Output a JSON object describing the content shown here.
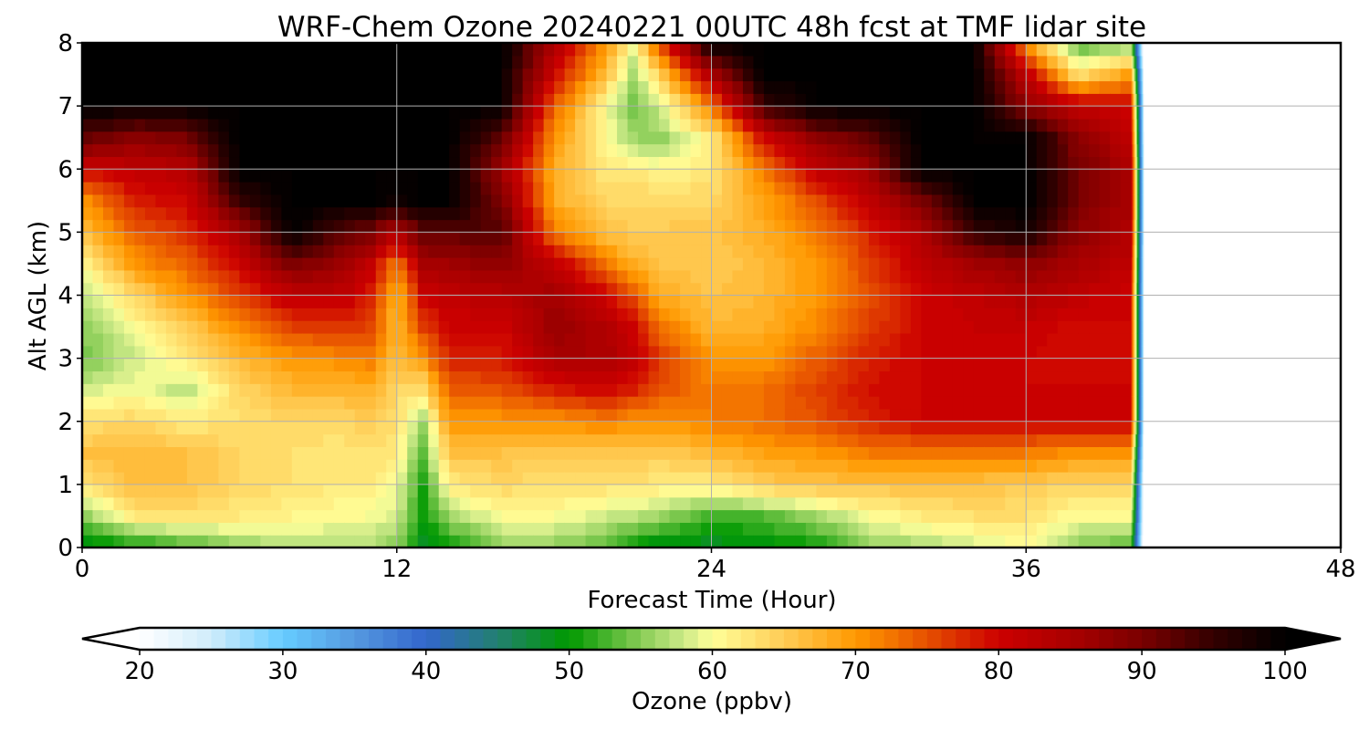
{
  "chart_data": {
    "type": "heatmap",
    "title": "WRF-Chem Ozone  20240221 00UTC 48h fcst at TMF lidar site",
    "xlabel": "Forecast Time (Hour)",
    "ylabel": "Alt AGL (km)",
    "xlim": [
      0,
      48
    ],
    "ylim": [
      0,
      8
    ],
    "xticks": [
      "0",
      "12",
      "24",
      "36",
      "48"
    ],
    "yticks": [
      "0",
      "1",
      "2",
      "3",
      "4",
      "5",
      "6",
      "7",
      "8"
    ],
    "grid": true,
    "colorbar": {
      "label": "Ozone  (ppbv)",
      "range": [
        20,
        100
      ],
      "step": 1,
      "extend": "both",
      "ticks": [
        "20",
        "30",
        "40",
        "50",
        "60",
        "70",
        "80",
        "90",
        "100"
      ],
      "anchors": [
        [
          20,
          "#ffffff"
        ],
        [
          25,
          "#d0ecfa"
        ],
        [
          30,
          "#66ccff"
        ],
        [
          35,
          "#5599e0"
        ],
        [
          40,
          "#3366cc"
        ],
        [
          45,
          "#228070"
        ],
        [
          50,
          "#009900"
        ],
        [
          55,
          "#88cc55"
        ],
        [
          58,
          "#ccea88"
        ],
        [
          60,
          "#ffff99"
        ],
        [
          65,
          "#ffcc55"
        ],
        [
          70,
          "#ff9900"
        ],
        [
          75,
          "#e65000"
        ],
        [
          80,
          "#cc0000"
        ],
        [
          85,
          "#aa0000"
        ],
        [
          90,
          "#7a0000"
        ],
        [
          95,
          "#330000"
        ],
        [
          100,
          "#000000"
        ]
      ]
    },
    "altitudes_km": [
      0,
      0.5,
      1,
      1.5,
      2,
      2.5,
      3,
      3.5,
      4,
      4.5,
      5,
      5.5,
      6,
      6.5,
      7,
      7.5,
      8
    ],
    "hours": [
      0,
      2,
      4,
      6,
      8,
      10,
      11,
      12,
      13,
      14,
      16,
      18,
      20,
      21,
      22,
      24,
      26,
      28,
      30,
      32,
      34,
      36,
      38,
      40,
      40.6
    ],
    "ozone_ppbv": [
      [
        48,
        55,
        62,
        66,
        63,
        58,
        54,
        55,
        57,
        60,
        66,
        70,
        80,
        92,
        100,
        100,
        100
      ],
      [
        50,
        62,
        67,
        67,
        64,
        60,
        58,
        60,
        64,
        70,
        74,
        78,
        82,
        88,
        100,
        100,
        100
      ],
      [
        52,
        63,
        66,
        66,
        62,
        57,
        62,
        65,
        70,
        74,
        77,
        80,
        83,
        90,
        100,
        100,
        100
      ],
      [
        55,
        62,
        64,
        64,
        63,
        64,
        67,
        71,
        76,
        80,
        85,
        95,
        100,
        100,
        100,
        100,
        100
      ],
      [
        57,
        61,
        63,
        63,
        64,
        67,
        70,
        76,
        82,
        90,
        100,
        100,
        100,
        100,
        100,
        100,
        100
      ],
      [
        57,
        60,
        62,
        62,
        64,
        67,
        71,
        77,
        82,
        86,
        92,
        100,
        100,
        100,
        100,
        100,
        100
      ],
      [
        57,
        60,
        62,
        63,
        65,
        68,
        72,
        76,
        78,
        82,
        90,
        100,
        100,
        100,
        100,
        100,
        100
      ],
      [
        55,
        58,
        60,
        62,
        63,
        64,
        66,
        67,
        67,
        72,
        84,
        98,
        100,
        100,
        100,
        100,
        100
      ],
      [
        48,
        50,
        51,
        53,
        56,
        63,
        70,
        76,
        80,
        85,
        92,
        100,
        100,
        100,
        100,
        100,
        100
      ],
      [
        50,
        56,
        62,
        66,
        70,
        74,
        78,
        80,
        82,
        86,
        92,
        100,
        100,
        100,
        100,
        100,
        100
      ],
      [
        55,
        60,
        64,
        66,
        70,
        75,
        78,
        80,
        83,
        88,
        93,
        90,
        86,
        92,
        100,
        100,
        100
      ],
      [
        55,
        60,
        63,
        65,
        70,
        78,
        85,
        87,
        86,
        82,
        72,
        68,
        68,
        70,
        74,
        80,
        85
      ],
      [
        53,
        58,
        63,
        65,
        72,
        80,
        85,
        84,
        80,
        72,
        66,
        64,
        62,
        60,
        60,
        66,
        70
      ],
      [
        50,
        57,
        63,
        65,
        70,
        78,
        82,
        80,
        75,
        68,
        65,
        64,
        62,
        56,
        54,
        56,
        60
      ],
      [
        48,
        56,
        62,
        65,
        70,
        75,
        77,
        73,
        68,
        66,
        65,
        64,
        61,
        55,
        58,
        64,
        75
      ],
      [
        48,
        52,
        62,
        67,
        72,
        72,
        70,
        67,
        66,
        65,
        66,
        64,
        62,
        62,
        72,
        85,
        100
      ],
      [
        49,
        53,
        65,
        69,
        73,
        73,
        70,
        68,
        67,
        67,
        68,
        69,
        72,
        80,
        95,
        100,
        100
      ],
      [
        50,
        56,
        66,
        70,
        75,
        76,
        74,
        71,
        70,
        70,
        72,
        75,
        82,
        88,
        100,
        100,
        100
      ],
      [
        55,
        60,
        66,
        72,
        78,
        79,
        78,
        76,
        75,
        76,
        78,
        82,
        86,
        92,
        100,
        100,
        100
      ],
      [
        56,
        62,
        66,
        72,
        80,
        80,
        80,
        80,
        80,
        82,
        84,
        90,
        100,
        100,
        100,
        100,
        100
      ],
      [
        58,
        63,
        66,
        72,
        80,
        80,
        80,
        81,
        82,
        86,
        95,
        100,
        100,
        100,
        100,
        100,
        100
      ],
      [
        60,
        63,
        65,
        72,
        80,
        80,
        80,
        81,
        84,
        88,
        98,
        100,
        100,
        100,
        88,
        82,
        70
      ],
      [
        55,
        60,
        64,
        70,
        80,
        80,
        79,
        79,
        82,
        85,
        88,
        90,
        90,
        88,
        82,
        63,
        52
      ],
      [
        53,
        60,
        64,
        70,
        80,
        80,
        80,
        80,
        80,
        82,
        84,
        85,
        85,
        82,
        80,
        70,
        55
      ],
      [
        10,
        10,
        10,
        10,
        10,
        10,
        10,
        10,
        10,
        10,
        10,
        10,
        10,
        10,
        10,
        10,
        10
      ]
    ]
  }
}
